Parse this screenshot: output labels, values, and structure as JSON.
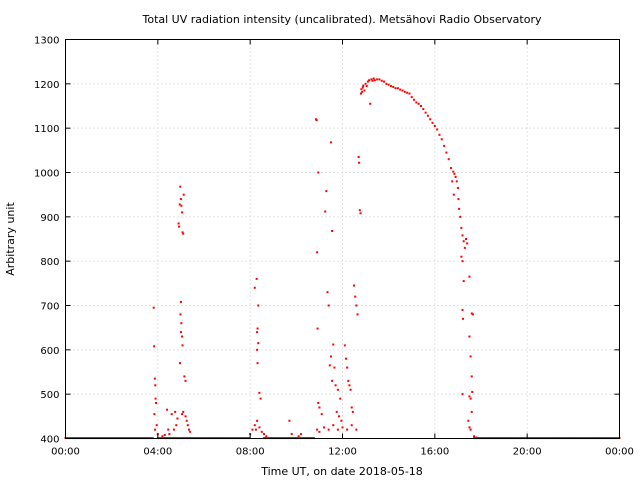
{
  "chart_data": {
    "type": "scatter",
    "title": "Total UV radiation intensity (uncalibrated). Metsähovi Radio Observatory",
    "xlabel": "Time UT, on date 2018-05-18",
    "ylabel": "Arbitrary unit",
    "xlim": [
      0,
      24
    ],
    "ylim": [
      400,
      1300
    ],
    "x_ticks": [
      {
        "value": 0,
        "label": "00:00"
      },
      {
        "value": 4,
        "label": "04:00"
      },
      {
        "value": 8,
        "label": "08:00"
      },
      {
        "value": 12,
        "label": "12:00"
      },
      {
        "value": 16,
        "label": "16:00"
      },
      {
        "value": 20,
        "label": "20:00"
      },
      {
        "value": 24,
        "label": "00:00"
      }
    ],
    "y_ticks": [
      {
        "value": 400,
        "label": "400"
      },
      {
        "value": 500,
        "label": "500"
      },
      {
        "value": 600,
        "label": "600"
      },
      {
        "value": 700,
        "label": "700"
      },
      {
        "value": 800,
        "label": "800"
      },
      {
        "value": 900,
        "label": "900"
      },
      {
        "value": 1000,
        "label": "1000"
      },
      {
        "value": 1100,
        "label": "1100"
      },
      {
        "value": 1200,
        "label": "1200"
      },
      {
        "value": 1300,
        "label": "1300"
      }
    ],
    "grid": true,
    "legend": "none",
    "marker_color": "#ff0000",
    "series": [
      {
        "points": [
          [
            3.82,
            695
          ],
          [
            3.84,
            608
          ],
          [
            3.87,
            535
          ],
          [
            3.89,
            520
          ],
          [
            3.9,
            490
          ],
          [
            3.92,
            480
          ],
          [
            3.85,
            455
          ],
          [
            3.95,
            430
          ],
          [
            3.88,
            420
          ],
          [
            4.0,
            410
          ],
          [
            4.2,
            405
          ],
          [
            4.3,
            408
          ],
          [
            4.4,
            465
          ],
          [
            4.45,
            420
          ],
          [
            4.5,
            410
          ],
          [
            4.6,
            455
          ],
          [
            4.7,
            420
          ],
          [
            4.75,
            460
          ],
          [
            4.9,
            885
          ],
          [
            4.92,
            878
          ],
          [
            4.95,
            928
          ],
          [
            4.97,
            968
          ],
          [
            5.0,
            940
          ],
          [
            5.02,
            925
          ],
          [
            5.05,
            910
          ],
          [
            5.07,
            865
          ],
          [
            5.1,
            862
          ],
          [
            5.12,
            950
          ],
          [
            5.0,
            708
          ],
          [
            4.98,
            680
          ],
          [
            5.02,
            660
          ],
          [
            5.0,
            640
          ],
          [
            5.05,
            630
          ],
          [
            5.07,
            610
          ],
          [
            4.96,
            570
          ],
          [
            5.15,
            540
          ],
          [
            5.2,
            530
          ],
          [
            5.05,
            455
          ],
          [
            5.1,
            460
          ],
          [
            5.2,
            450
          ],
          [
            5.25,
            440
          ],
          [
            5.3,
            430
          ],
          [
            5.35,
            420
          ],
          [
            5.4,
            415
          ],
          [
            4.85,
            445
          ],
          [
            4.8,
            430
          ],
          [
            8.28,
            760
          ],
          [
            8.2,
            740
          ],
          [
            8.35,
            700
          ],
          [
            8.32,
            648
          ],
          [
            8.3,
            640
          ],
          [
            8.35,
            615
          ],
          [
            8.3,
            600
          ],
          [
            8.32,
            570
          ],
          [
            8.4,
            503
          ],
          [
            8.45,
            490
          ],
          [
            8.2,
            430
          ],
          [
            8.25,
            420
          ],
          [
            8.3,
            440
          ],
          [
            8.4,
            425
          ],
          [
            8.5,
            415
          ],
          [
            8.6,
            410
          ],
          [
            8.7,
            405
          ],
          [
            8.1,
            420
          ],
          [
            8.0,
            410
          ],
          [
            9.7,
            440
          ],
          [
            9.8,
            410
          ],
          [
            10.1,
            405
          ],
          [
            10.2,
            410
          ],
          [
            10.85,
            1120
          ],
          [
            10.88,
            1118
          ],
          [
            10.9,
            820
          ],
          [
            10.95,
            1000
          ],
          [
            10.92,
            648
          ],
          [
            10.95,
            480
          ],
          [
            11.0,
            470
          ],
          [
            11.1,
            455
          ],
          [
            11.3,
            958
          ],
          [
            11.25,
            912
          ],
          [
            11.35,
            730
          ],
          [
            11.5,
            1068
          ],
          [
            11.55,
            868
          ],
          [
            11.4,
            700
          ],
          [
            11.45,
            565
          ],
          [
            11.5,
            585
          ],
          [
            11.55,
            530
          ],
          [
            11.6,
            612
          ],
          [
            11.65,
            560
          ],
          [
            11.7,
            520
          ],
          [
            11.8,
            510
          ],
          [
            11.9,
            490
          ],
          [
            11.75,
            460
          ],
          [
            11.85,
            450
          ],
          [
            11.95,
            440
          ],
          [
            12.1,
            610
          ],
          [
            12.15,
            580
          ],
          [
            12.2,
            560
          ],
          [
            12.25,
            530
          ],
          [
            12.3,
            520
          ],
          [
            12.35,
            510
          ],
          [
            12.4,
            470
          ],
          [
            12.45,
            460
          ],
          [
            12.5,
            745
          ],
          [
            12.55,
            720
          ],
          [
            12.6,
            700
          ],
          [
            12.65,
            680
          ],
          [
            12.7,
            1035
          ],
          [
            12.72,
            1022
          ],
          [
            12.75,
            915
          ],
          [
            12.78,
            908
          ],
          [
            10.9,
            420
          ],
          [
            11.0,
            415
          ],
          [
            11.2,
            425
          ],
          [
            11.4,
            420
          ],
          [
            11.6,
            430
          ],
          [
            11.8,
            420
          ],
          [
            12.0,
            425
          ],
          [
            12.2,
            420
          ],
          [
            12.4,
            430
          ],
          [
            12.6,
            420
          ],
          [
            12.8,
            1178
          ],
          [
            12.82,
            1188
          ],
          [
            12.85,
            1182
          ],
          [
            12.88,
            1192
          ],
          [
            12.9,
            1196
          ],
          [
            12.95,
            1185
          ],
          [
            13.0,
            1200
          ],
          [
            13.05,
            1195
          ],
          [
            13.1,
            1205
          ],
          [
            13.15,
            1208
          ],
          [
            13.2,
            1155
          ],
          [
            13.25,
            1210
          ],
          [
            13.3,
            1207
          ],
          [
            13.35,
            1212
          ],
          [
            13.4,
            1208
          ],
          [
            13.5,
            1210
          ],
          [
            13.6,
            1210
          ],
          [
            13.7,
            1207
          ],
          [
            13.8,
            1205
          ],
          [
            13.9,
            1200
          ],
          [
            14.0,
            1198
          ],
          [
            14.1,
            1195
          ],
          [
            14.2,
            1193
          ],
          [
            14.3,
            1190
          ],
          [
            14.4,
            1190
          ],
          [
            14.5,
            1187
          ],
          [
            14.6,
            1185
          ],
          [
            14.7,
            1182
          ],
          [
            14.8,
            1180
          ],
          [
            14.9,
            1178
          ],
          [
            15.0,
            1170
          ],
          [
            15.1,
            1164
          ],
          [
            15.2,
            1158
          ],
          [
            15.3,
            1155
          ],
          [
            15.4,
            1150
          ],
          [
            15.5,
            1143
          ],
          [
            15.6,
            1135
          ],
          [
            15.7,
            1128
          ],
          [
            15.8,
            1120
          ],
          [
            15.9,
            1112
          ],
          [
            16.0,
            1105
          ],
          [
            16.1,
            1097
          ],
          [
            16.2,
            1085
          ],
          [
            16.3,
            1075
          ],
          [
            16.4,
            1060
          ],
          [
            16.5,
            1045
          ],
          [
            16.6,
            1030
          ],
          [
            16.7,
            1010
          ],
          [
            16.8,
            1002
          ],
          [
            16.85,
            997
          ],
          [
            16.9,
            990
          ],
          [
            16.95,
            980
          ],
          [
            17.0,
            965
          ],
          [
            17.02,
            940
          ],
          [
            17.05,
            918
          ],
          [
            17.1,
            900
          ],
          [
            16.75,
            980
          ],
          [
            16.82,
            950
          ],
          [
            17.15,
            875
          ],
          [
            17.2,
            858
          ],
          [
            17.25,
            845
          ],
          [
            17.3,
            830
          ],
          [
            17.35,
            850
          ],
          [
            17.4,
            840
          ],
          [
            17.15,
            810
          ],
          [
            17.2,
            800
          ],
          [
            17.25,
            755
          ],
          [
            17.5,
            765
          ],
          [
            17.2,
            690
          ],
          [
            17.22,
            670
          ],
          [
            17.6,
            682
          ],
          [
            17.65,
            680
          ],
          [
            17.5,
            630
          ],
          [
            17.55,
            585
          ],
          [
            17.6,
            540
          ],
          [
            17.62,
            505
          ],
          [
            17.2,
            500
          ],
          [
            17.5,
            495
          ],
          [
            17.55,
            490
          ],
          [
            17.6,
            460
          ],
          [
            17.45,
            440
          ],
          [
            17.5,
            425
          ],
          [
            17.55,
            420
          ],
          [
            17.7,
            405
          ],
          [
            17.8,
            402
          ],
          [
            17.9,
            401
          ]
        ]
      }
    ],
    "baseline_ranges": [
      [
        0,
        3.8
      ],
      [
        4.0,
        8.0
      ],
      [
        8.6,
        10.8
      ],
      [
        17.7,
        24
      ]
    ],
    "baseline_value": 401
  }
}
